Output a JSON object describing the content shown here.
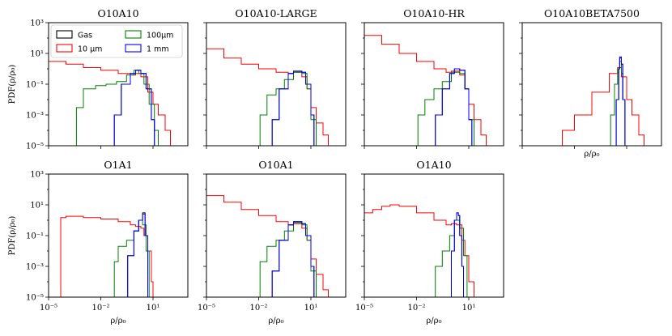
{
  "figure": {
    "legend_entries": [
      {
        "label": "Gas",
        "color": "#000000"
      },
      {
        "label": "100μm",
        "color": "#008000"
      },
      {
        "label": "10 μm",
        "color": "#ff0000"
      },
      {
        "label": "1 mm",
        "color": "#0000ff"
      }
    ]
  },
  "chart_data": [
    {
      "type": "step-histogram",
      "title": "O10A10",
      "xlabel": "",
      "ylabel": "PDF(ρ/ρ₀)",
      "xscale": "log",
      "yscale": "log",
      "xlim": [
        1e-05,
        1000
      ],
      "ylim": [
        1e-05,
        1000
      ],
      "xticks": [],
      "yticks": [
        "10³",
        "10¹",
        "10⁻¹",
        "10⁻³",
        "10⁻⁵"
      ],
      "legend": "top-left",
      "series": [
        {
          "name": "10 μm",
          "color": "#ff0000",
          "x": [
            1e-05,
            0.0001,
            0.001,
            0.01,
            0.1,
            0.5,
            1,
            2,
            5,
            10,
            20,
            50,
            100
          ],
          "y": [
            3.0,
            2.0,
            1.2,
            0.8,
            0.5,
            0.4,
            0.5,
            0.3,
            0.03,
            0.005,
            0.001,
            0.0001,
            1e-05
          ]
        },
        {
          "name": "100μm",
          "color": "#008000",
          "x": [
            0.0003,
            0.0004,
            0.001,
            0.005,
            0.02,
            0.08,
            0.3,
            0.8,
            1.5,
            3,
            6,
            12,
            20
          ],
          "y": [
            1e-05,
            0.003,
            0.05,
            0.08,
            0.1,
            0.15,
            0.4,
            0.8,
            0.5,
            0.1,
            0.005,
            0.0001,
            1e-05
          ]
        },
        {
          "name": "Gas",
          "color": "#000000",
          "x": [
            0.05,
            0.06,
            0.15,
            0.5,
            1,
            2,
            4,
            8,
            12
          ],
          "y": [
            1e-05,
            0.001,
            0.1,
            0.5,
            0.8,
            0.5,
            0.05,
            0.0005,
            1e-05
          ]
        },
        {
          "name": "1 mm",
          "color": "#0000ff",
          "x": [
            0.05,
            0.06,
            0.15,
            0.5,
            1,
            2,
            4,
            8,
            12
          ],
          "y": [
            1e-05,
            0.001,
            0.1,
            0.5,
            0.8,
            0.5,
            0.05,
            0.0005,
            1e-05
          ]
        }
      ]
    },
    {
      "type": "step-histogram",
      "title": "O10A10-LARGE",
      "xlabel": "",
      "ylabel": "",
      "xscale": "log",
      "yscale": "log",
      "xlim": [
        1e-05,
        1000
      ],
      "ylim": [
        1e-05,
        1000
      ],
      "xticks": [],
      "yticks": [],
      "series": [
        {
          "name": "10 μm",
          "color": "#ff0000",
          "x": [
            1e-05,
            0.0001,
            0.001,
            0.01,
            0.1,
            0.5,
            1,
            3,
            6,
            10,
            20,
            50,
            100
          ],
          "y": [
            20,
            5,
            2,
            1,
            0.6,
            0.5,
            0.6,
            0.3,
            0.05,
            0.003,
            0.0003,
            5e-05,
            1e-05
          ]
        },
        {
          "name": "100μm",
          "color": "#008000",
          "x": [
            0.01,
            0.012,
            0.03,
            0.1,
            0.3,
            1,
            3,
            6,
            10,
            20
          ],
          "y": [
            1e-05,
            0.001,
            0.02,
            0.05,
            0.2,
            0.6,
            0.5,
            0.05,
            0.0005,
            1e-05
          ]
        },
        {
          "name": "Gas",
          "color": "#000000",
          "x": [
            0.05,
            0.06,
            0.15,
            0.5,
            1,
            3,
            5,
            10,
            15
          ],
          "y": [
            1e-05,
            0.0005,
            0.05,
            0.5,
            0.7,
            0.6,
            0.1,
            0.001,
            1e-05
          ]
        },
        {
          "name": "1 mm",
          "color": "#0000ff",
          "x": [
            0.05,
            0.06,
            0.15,
            0.5,
            1,
            3,
            5,
            10,
            15
          ],
          "y": [
            1e-05,
            0.0005,
            0.05,
            0.5,
            0.7,
            0.6,
            0.1,
            0.001,
            1e-05
          ]
        }
      ]
    },
    {
      "type": "step-histogram",
      "title": "O10A10-HR",
      "xlabel": "",
      "ylabel": "",
      "xscale": "log",
      "yscale": "log",
      "xlim": [
        1e-05,
        1000
      ],
      "ylim": [
        1e-05,
        1000
      ],
      "xticks": [],
      "yticks": [],
      "series": [
        {
          "name": "10 μm",
          "color": "#ff0000",
          "x": [
            1e-05,
            0.0001,
            0.001,
            0.01,
            0.1,
            0.5,
            1,
            3,
            6,
            10,
            20,
            50,
            100
          ],
          "y": [
            150,
            40,
            10,
            3,
            1,
            0.6,
            0.7,
            0.4,
            0.05,
            0.005,
            0.0005,
            5e-05,
            1e-05
          ]
        },
        {
          "name": "100μm",
          "color": "#008000",
          "x": [
            0.01,
            0.012,
            0.03,
            0.1,
            0.3,
            1,
            3,
            6,
            10,
            20
          ],
          "y": [
            1e-05,
            0.001,
            0.01,
            0.05,
            0.15,
            0.6,
            0.5,
            0.05,
            0.0005,
            1e-05
          ]
        },
        {
          "name": "Gas",
          "color": "#000000",
          "x": [
            0.1,
            0.12,
            0.3,
            0.8,
            1.5,
            3,
            6,
            10,
            15
          ],
          "y": [
            1e-05,
            0.001,
            0.05,
            0.5,
            1.0,
            0.8,
            0.05,
            0.0005,
            1e-05
          ]
        },
        {
          "name": "1 mm",
          "color": "#0000ff",
          "x": [
            0.1,
            0.12,
            0.3,
            0.8,
            1.5,
            3,
            6,
            10,
            15
          ],
          "y": [
            1e-05,
            0.001,
            0.05,
            0.5,
            1.0,
            0.8,
            0.05,
            0.0005,
            1e-05
          ]
        }
      ]
    },
    {
      "type": "step-histogram",
      "title": "O10A10BETA7500",
      "xlabel": "ρ/ρ₀",
      "ylabel": "",
      "xscale": "log",
      "yscale": "log",
      "xlim": [
        1e-05,
        1000
      ],
      "ylim": [
        1e-05,
        1000
      ],
      "xticks": [],
      "yticks": [],
      "series": [
        {
          "name": "10 μm",
          "color": "#ff0000",
          "x": [
            0.001,
            0.002,
            0.01,
            0.1,
            1,
            3,
            5,
            10,
            20,
            50,
            100
          ],
          "y": [
            1e-05,
            0.0001,
            0.001,
            0.03,
            0.5,
            1.2,
            0.3,
            0.01,
            0.001,
            5e-05,
            1e-05
          ]
        },
        {
          "name": "100μm",
          "color": "#008000",
          "x": [
            1,
            1.2,
            2,
            3,
            4,
            5,
            6,
            8
          ],
          "y": [
            1e-05,
            0.001,
            0.1,
            1,
            3,
            0.5,
            0.01,
            1e-05
          ]
        },
        {
          "name": "Gas",
          "color": "#000000",
          "x": [
            2,
            2.5,
            3.5,
            4,
            5,
            6,
            8
          ],
          "y": [
            1e-05,
            0.01,
            1,
            5,
            2,
            0.01,
            1e-05
          ]
        },
        {
          "name": "1 mm",
          "color": "#0000ff",
          "x": [
            2,
            2.5,
            3.5,
            4,
            5,
            6,
            8
          ],
          "y": [
            1e-05,
            0.01,
            1,
            6,
            2,
            0.01,
            1e-05
          ]
        }
      ]
    },
    {
      "type": "step-histogram",
      "title": "O1A1",
      "xlabel": "ρ/ρ₀",
      "ylabel": "PDF(ρ/ρ₀)",
      "xscale": "log",
      "yscale": "log",
      "xlim": [
        1e-05,
        1000
      ],
      "ylim": [
        1e-05,
        1000
      ],
      "xticks": [
        "10⁻⁵",
        "10⁻²",
        "10¹"
      ],
      "yticks": [
        "10³",
        "10¹",
        "10⁻¹",
        "10⁻³",
        "10⁻⁵"
      ],
      "series": [
        {
          "name": "10 μm",
          "color": "#ff0000",
          "x": [
            3e-05,
            5e-05,
            0.0001,
            0.001,
            0.01,
            0.1,
            0.5,
            1,
            2,
            3,
            5,
            8,
            10
          ],
          "y": [
            1e-05,
            1.5,
            1.8,
            1.5,
            1.2,
            0.8,
            0.5,
            0.4,
            0.3,
            0.1,
            0.01,
            0.0001,
            1e-05
          ]
        },
        {
          "name": "100μm",
          "color": "#008000",
          "x": [
            0.05,
            0.06,
            0.1,
            0.3,
            0.8,
            1.5,
            2.5,
            4,
            6
          ],
          "y": [
            1e-05,
            0.002,
            0.02,
            0.05,
            0.2,
            1,
            0.5,
            0.01,
            1e-05
          ]
        },
        {
          "name": "Gas",
          "color": "#000000",
          "x": [
            0.3,
            0.35,
            0.8,
            1.5,
            2.5,
            3.5,
            5
          ],
          "y": [
            1e-05,
            0.005,
            0.2,
            1,
            3,
            0.1,
            1e-05
          ]
        },
        {
          "name": "1 mm",
          "color": "#0000ff",
          "x": [
            0.3,
            0.35,
            0.8,
            1.5,
            2.5,
            3.5,
            5
          ],
          "y": [
            1e-05,
            0.005,
            0.2,
            1,
            2.5,
            0.1,
            1e-05
          ]
        }
      ]
    },
    {
      "type": "step-histogram",
      "title": "O10A1",
      "xlabel": "ρ/ρ₀",
      "ylabel": "",
      "xscale": "log",
      "yscale": "log",
      "xlim": [
        1e-05,
        1000
      ],
      "ylim": [
        1e-05,
        1000
      ],
      "xticks": [
        "10⁻⁵",
        "10⁻²",
        "10¹"
      ],
      "yticks": [],
      "series": [
        {
          "name": "10 μm",
          "color": "#ff0000",
          "x": [
            1e-05,
            0.0001,
            0.001,
            0.01,
            0.1,
            0.5,
            1,
            3,
            6,
            10,
            20,
            50,
            100
          ],
          "y": [
            40,
            15,
            5,
            2,
            0.8,
            0.5,
            0.6,
            0.3,
            0.05,
            0.003,
            0.0003,
            3e-05,
            1e-05
          ]
        },
        {
          "name": "100μm",
          "color": "#008000",
          "x": [
            0.01,
            0.012,
            0.03,
            0.1,
            0.3,
            1,
            3,
            6,
            10,
            20
          ],
          "y": [
            1e-05,
            0.002,
            0.02,
            0.05,
            0.2,
            0.7,
            0.5,
            0.05,
            0.0005,
            1e-05
          ]
        },
        {
          "name": "Gas",
          "color": "#000000",
          "x": [
            0.05,
            0.06,
            0.15,
            0.5,
            1,
            3,
            5,
            10,
            15
          ],
          "y": [
            1e-05,
            0.0005,
            0.05,
            0.5,
            0.8,
            0.6,
            0.1,
            0.001,
            1e-05
          ]
        },
        {
          "name": "1 mm",
          "color": "#0000ff",
          "x": [
            0.05,
            0.06,
            0.15,
            0.5,
            1,
            3,
            5,
            10,
            15
          ],
          "y": [
            1e-05,
            0.0005,
            0.05,
            0.5,
            0.8,
            0.6,
            0.1,
            0.001,
            1e-05
          ]
        }
      ]
    },
    {
      "type": "step-histogram",
      "title": "O1A10",
      "xlabel": "ρ/ρ₀",
      "ylabel": "",
      "xscale": "log",
      "yscale": "log",
      "xlim": [
        1e-05,
        1000
      ],
      "ylim": [
        1e-05,
        1000
      ],
      "xticks": [
        "10⁻⁵",
        "10⁻²",
        "10¹"
      ],
      "yticks": [],
      "series": [
        {
          "name": "10 μm",
          "color": "#ff0000",
          "x": [
            1e-05,
            3e-05,
            0.0001,
            0.0003,
            0.001,
            0.01,
            0.1,
            0.5,
            1,
            2,
            4,
            6,
            10,
            20
          ],
          "y": [
            3,
            5,
            8,
            10,
            8,
            3,
            1,
            0.5,
            0.6,
            0.5,
            0.05,
            0.005,
            0.0001,
            1e-05
          ]
        },
        {
          "name": "100μm",
          "color": "#008000",
          "x": [
            0.1,
            0.12,
            0.3,
            0.8,
            1.5,
            3,
            5,
            8
          ],
          "y": [
            1e-05,
            0.001,
            0.01,
            0.1,
            1,
            0.3,
            0.005,
            1e-05
          ]
        },
        {
          "name": "Gas",
          "color": "#000000",
          "x": [
            0.8,
            1,
            1.5,
            2,
            2.5,
            3,
            4,
            5
          ],
          "y": [
            1e-05,
            0.01,
            1,
            3,
            2,
            0.1,
            0.001,
            1e-05
          ]
        },
        {
          "name": "1 mm",
          "color": "#0000ff",
          "x": [
            0.8,
            1,
            1.5,
            2,
            2.5,
            3,
            4,
            5
          ],
          "y": [
            1e-05,
            0.01,
            1,
            3,
            2,
            0.1,
            0.001,
            1e-05
          ]
        }
      ]
    }
  ]
}
